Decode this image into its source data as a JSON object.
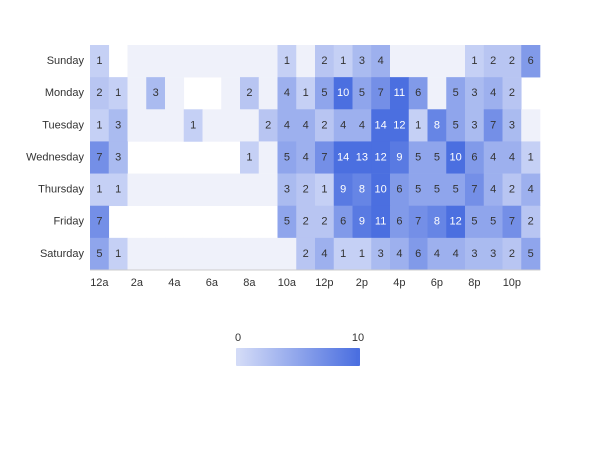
{
  "chart_data": {
    "type": "heatmap",
    "categories": [
      "12a",
      null,
      "2a",
      null,
      "4a",
      null,
      "6a",
      null,
      "8a",
      null,
      "10a",
      null,
      "12p",
      null,
      "2p",
      null,
      "4p",
      null,
      "6p",
      null,
      "8p",
      null,
      "10p",
      null
    ],
    "y_categories": [
      "Sunday",
      "Monday",
      "Tuesday",
      "Wednesday",
      "Thursday",
      "Friday",
      "Saturday"
    ],
    "values": [
      [
        1,
        null,
        0,
        0,
        0,
        0,
        0,
        0,
        0,
        0,
        1,
        0,
        2,
        1,
        3,
        4,
        0,
        0,
        0,
        0,
        1,
        2,
        2,
        6
      ],
      [
        2,
        1,
        0,
        3,
        0,
        null,
        null,
        0,
        2,
        0,
        4,
        1,
        5,
        10,
        5,
        7,
        11,
        6,
        0,
        5,
        3,
        4,
        2,
        null
      ],
      [
        1,
        3,
        0,
        0,
        0,
        1,
        0,
        0,
        0,
        2,
        4,
        4,
        2,
        4,
        4,
        14,
        12,
        1,
        8,
        5,
        3,
        7,
        3,
        0
      ],
      [
        7,
        3,
        null,
        null,
        null,
        null,
        null,
        null,
        1,
        0,
        5,
        4,
        7,
        14,
        13,
        12,
        9,
        5,
        5,
        10,
        6,
        4,
        4,
        1
      ],
      [
        1,
        1,
        0,
        0,
        0,
        0,
        0,
        0,
        0,
        0,
        3,
        2,
        1,
        9,
        8,
        10,
        6,
        5,
        5,
        5,
        7,
        4,
        2,
        4
      ],
      [
        7,
        null,
        null,
        null,
        null,
        null,
        null,
        null,
        null,
        null,
        5,
        2,
        2,
        6,
        9,
        11,
        6,
        7,
        8,
        12,
        5,
        5,
        7,
        2
      ],
      [
        5,
        1,
        0,
        0,
        0,
        0,
        0,
        0,
        0,
        0,
        0,
        2,
        4,
        1,
        1,
        3,
        4,
        6,
        4,
        4,
        3,
        3,
        2,
        5
      ]
    ],
    "visual_range": [
      0,
      10
    ],
    "color_range": [
      "#d3dbf7",
      "#4b6fe0"
    ],
    "zero_color": "#eff1fa"
  }
}
